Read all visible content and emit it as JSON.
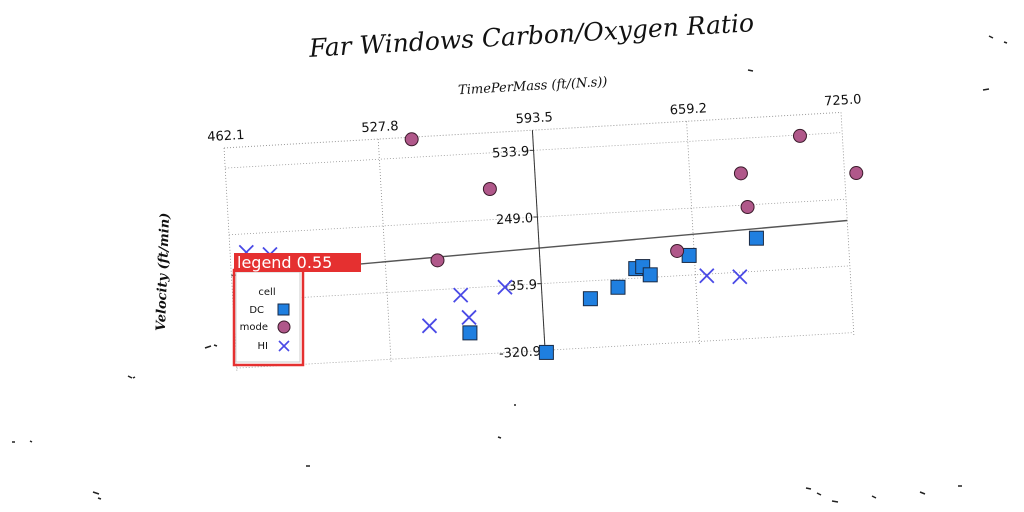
{
  "chart_data": {
    "type": "scatter",
    "title": "Far Windows Carbon/Oxygen Ratio",
    "xlabel": "TimePerMass (ft/(N.s))",
    "ylabel": "Velocity (ft/min)",
    "x_ticks": [
      "462.1",
      "527.8",
      "593.5",
      "659.2",
      "725.0"
    ],
    "y_ticks": [
      "533.9",
      "249.0",
      "-35.9",
      "-320.9"
    ],
    "xlim": [
      462.1,
      725.0
    ],
    "ylim": [
      -340,
      620
    ],
    "grid": true,
    "legend": {
      "title": "cell",
      "placement": "left"
    },
    "series": [
      {
        "name": "DC",
        "marker": "square",
        "color": "#1f7fe0",
        "x": [
          562,
          594,
          614,
          626,
          634,
          637,
          640,
          657,
          686
        ],
        "y": [
          -228,
          -330,
          -112,
          -70,
          5,
          12,
          -25,
          48,
          105
        ]
      },
      {
        "name": "mode",
        "marker": "circle",
        "color": "#b0588a",
        "x": [
          542,
          550,
          574,
          652,
          681,
          683,
          707,
          730
        ],
        "y": [
          611,
          89,
          380,
          70,
          385,
          240,
          530,
          358
        ]
      },
      {
        "name": "HI",
        "marker": "x",
        "color": "#4a4ae6",
        "x": [
          469,
          479,
          545,
          559,
          562,
          578,
          664,
          678
        ],
        "y": [
          170,
          155,
          -188,
          -65,
          -162,
          -42,
          -43,
          -55
        ]
      }
    ],
    "reference_line": {
      "x": [
        462.1,
        725.0
      ],
      "y": [
        75,
        158
      ]
    }
  },
  "detection": {
    "label": "legend 0.55",
    "color": "#e53030"
  }
}
